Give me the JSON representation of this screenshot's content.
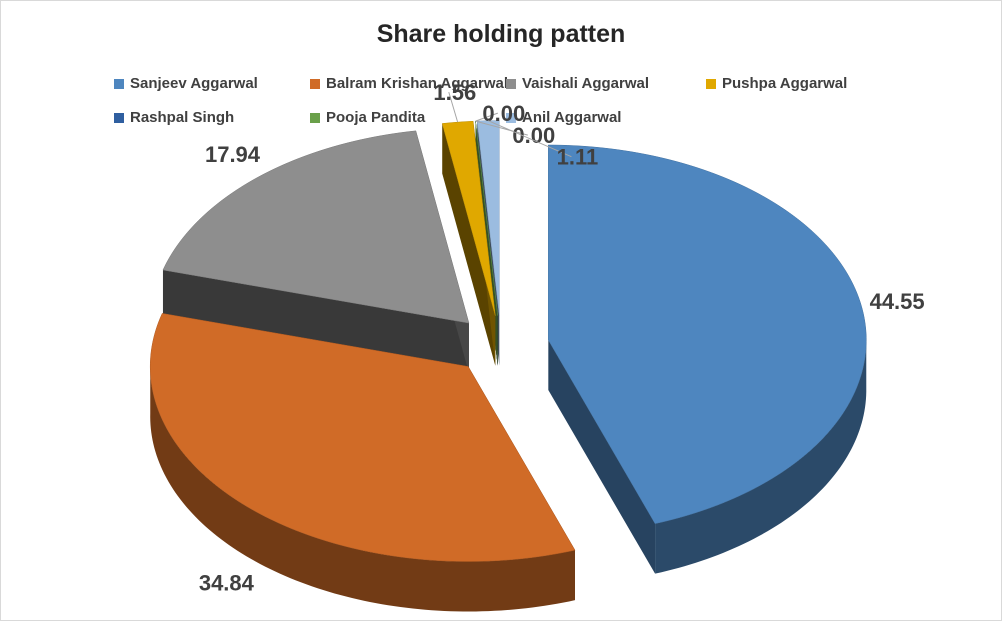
{
  "chart_data": {
    "type": "pie",
    "title": "Share holding patten",
    "legend_position": "top",
    "categories": [
      "Sanjeev Aggarwal",
      "Balram Krishan Aggarwal",
      "Vaishali Aggarwal",
      "Pushpa Aggarwal",
      "Rashpal Singh",
      "Pooja Pandita",
      "Anil Aggarwal"
    ],
    "values": [
      44.55,
      34.84,
      17.94,
      1.56,
      0.0,
      0.0,
      1.11
    ],
    "data_labels": [
      "44.55",
      "34.84",
      "17.94",
      "1.56",
      "0.00",
      "0.00",
      "1.11"
    ],
    "colors": [
      "#4e86bf",
      "#d06b27",
      "#8e8e8e",
      "#e0a800",
      "#2f5fa0",
      "#6aa04a",
      "#9bbce0"
    ],
    "style": "3D exploded pie"
  }
}
